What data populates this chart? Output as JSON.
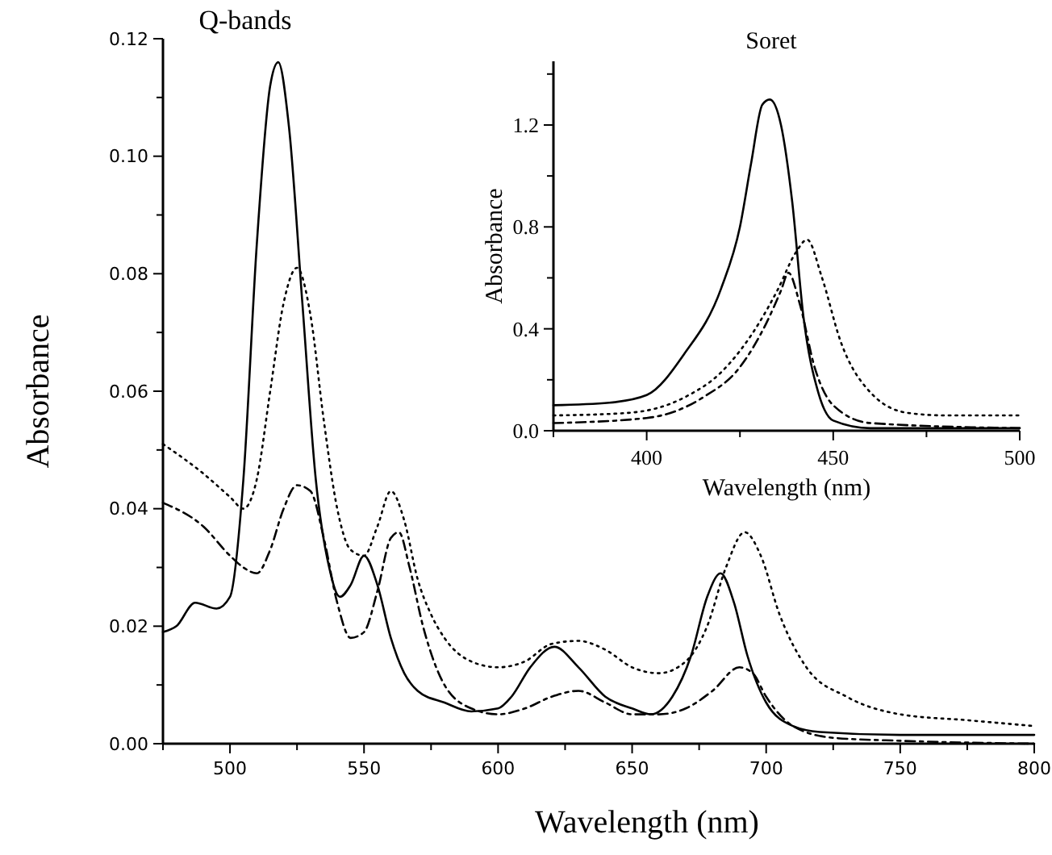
{
  "chart_data": [
    {
      "type": "line",
      "title": "Q-bands",
      "xlabel": "Wavelength (nm)",
      "ylabel": "Absorbance",
      "xlim": [
        475,
        800
      ],
      "ylim": [
        0,
        0.12
      ],
      "xticks": [
        {
          "value": 475,
          "label": null
        },
        500,
        {
          "value": 525,
          "label": null
        },
        550,
        {
          "value": 575,
          "label": null
        },
        600,
        {
          "value": 625,
          "label": null
        },
        650,
        {
          "value": 675,
          "label": null
        },
        700,
        {
          "value": 725,
          "label": null
        },
        750,
        {
          "value": 775,
          "label": null
        },
        800
      ],
      "yticks": [
        {
          "value": 0,
          "label": "0.00"
        },
        {
          "value": 0.01,
          "label": null
        },
        {
          "value": 0.02,
          "label": "0.02"
        },
        {
          "value": 0.03,
          "label": null
        },
        {
          "value": 0.04,
          "label": "0.04"
        },
        {
          "value": 0.05,
          "label": null
        },
        {
          "value": 0.06,
          "label": "0.06"
        },
        {
          "value": 0.07,
          "label": null
        },
        {
          "value": 0.08,
          "label": "0.08"
        },
        {
          "value": 0.09,
          "label": null
        },
        {
          "value": 0.1,
          "label": "0.10"
        },
        {
          "value": 0.11,
          "label": null
        },
        {
          "value": 0.12,
          "label": "0.12"
        }
      ],
      "series": [
        {
          "color": "#000000",
          "line_style": "solid",
          "x": [
            475,
            480,
            487,
            495,
            500,
            505,
            510,
            515,
            518,
            522,
            527,
            532,
            537,
            541,
            545,
            550,
            555,
            560,
            565,
            570,
            580,
            590,
            600,
            605,
            612,
            621,
            630,
            640,
            650,
            657,
            665,
            672,
            678,
            683,
            688,
            693,
            700,
            710,
            720,
            750,
            800
          ],
          "values": [
            0.019,
            0.02,
            0.024,
            0.023,
            0.025,
            0.045,
            0.085,
            0.112,
            0.116,
            0.105,
            0.075,
            0.045,
            0.03,
            0.025,
            0.027,
            0.032,
            0.027,
            0.018,
            0.012,
            0.009,
            0.007,
            0.0055,
            0.006,
            0.008,
            0.013,
            0.0165,
            0.013,
            0.008,
            0.006,
            0.005,
            0.008,
            0.015,
            0.025,
            0.029,
            0.024,
            0.015,
            0.007,
            0.003,
            0.002,
            0.0015,
            0.0015
          ]
        },
        {
          "color": "#000000",
          "line_style": "dashed",
          "x": [
            475,
            490,
            500,
            505,
            510,
            515,
            520,
            525,
            530,
            535,
            540,
            545,
            550,
            555,
            560,
            563,
            567,
            572,
            580,
            590,
            600,
            610,
            620,
            630,
            640,
            650,
            660,
            670,
            680,
            690,
            695,
            700,
            710,
            725,
            750,
            800
          ],
          "values": [
            0.041,
            0.037,
            0.032,
            0.03,
            0.029,
            0.033,
            0.04,
            0.044,
            0.043,
            0.035,
            0.024,
            0.018,
            0.019,
            0.026,
            0.035,
            0.036,
            0.03,
            0.02,
            0.01,
            0.006,
            0.005,
            0.006,
            0.008,
            0.009,
            0.007,
            0.005,
            0.005,
            0.006,
            0.009,
            0.013,
            0.012,
            0.008,
            0.003,
            0.001,
            0.0005,
            0
          ]
        },
        {
          "color": "#000000",
          "line_style": "dotted",
          "x": [
            475,
            490,
            500,
            505,
            510,
            515,
            520,
            525,
            530,
            535,
            540,
            545,
            550,
            555,
            560,
            565,
            570,
            575,
            580,
            590,
            600,
            610,
            620,
            630,
            640,
            650,
            660,
            670,
            678,
            685,
            692,
            698,
            705,
            715,
            730,
            750,
            775,
            800
          ],
          "values": [
            0.051,
            0.046,
            0.042,
            0.04,
            0.045,
            0.06,
            0.075,
            0.081,
            0.073,
            0.055,
            0.04,
            0.033,
            0.032,
            0.037,
            0.043,
            0.038,
            0.028,
            0.022,
            0.018,
            0.014,
            0.013,
            0.014,
            0.017,
            0.0175,
            0.016,
            0.013,
            0.012,
            0.014,
            0.02,
            0.03,
            0.036,
            0.032,
            0.022,
            0.013,
            0.008,
            0.005,
            0.004,
            0.003
          ]
        }
      ]
    },
    {
      "type": "line",
      "title": "Soret",
      "xlabel": "Wavelength (nm)",
      "ylabel": "Absorbance",
      "xlim": [
        375,
        500
      ],
      "ylim": [
        0,
        1.45
      ],
      "xticks": [
        {
          "value": 375,
          "label": null
        },
        400,
        {
          "value": 425,
          "label": null
        },
        450,
        {
          "value": 475,
          "label": null
        },
        500
      ],
      "yticks": [
        {
          "value": 0,
          "label": "0.0"
        },
        {
          "value": 0.2,
          "label": null
        },
        {
          "value": 0.4,
          "label": "0.4"
        },
        {
          "value": 0.6,
          "label": null
        },
        {
          "value": 0.8,
          "label": "0.8"
        },
        {
          "value": 1.0,
          "label": null
        },
        {
          "value": 1.2,
          "label": "1.2"
        },
        {
          "value": 1.4,
          "label": null
        }
      ],
      "series": [
        {
          "color": "#000000",
          "line_style": "solid",
          "x": [
            375,
            390,
            400,
            410,
            420,
            425,
            428,
            431,
            433,
            436,
            439,
            442,
            446,
            450,
            460,
            500
          ],
          "values": [
            0.1,
            0.11,
            0.14,
            0.3,
            0.56,
            0.8,
            1.05,
            1.28,
            1.3,
            1.2,
            0.9,
            0.45,
            0.15,
            0.04,
            0.01,
            0.01
          ]
        },
        {
          "color": "#000000",
          "line_style": "dashed",
          "x": [
            375,
            400,
            415,
            425,
            432,
            436,
            438,
            441,
            445,
            450,
            460,
            500
          ],
          "values": [
            0.03,
            0.05,
            0.13,
            0.25,
            0.42,
            0.55,
            0.62,
            0.5,
            0.25,
            0.1,
            0.03,
            0.01
          ]
        },
        {
          "color": "#000000",
          "line_style": "dotted",
          "x": [
            375,
            395,
            410,
            420,
            430,
            435,
            440,
            443,
            447,
            452,
            460,
            470,
            480,
            500
          ],
          "values": [
            0.06,
            0.07,
            0.13,
            0.23,
            0.42,
            0.55,
            0.7,
            0.75,
            0.6,
            0.35,
            0.15,
            0.07,
            0.06,
            0.06
          ]
        }
      ]
    }
  ]
}
